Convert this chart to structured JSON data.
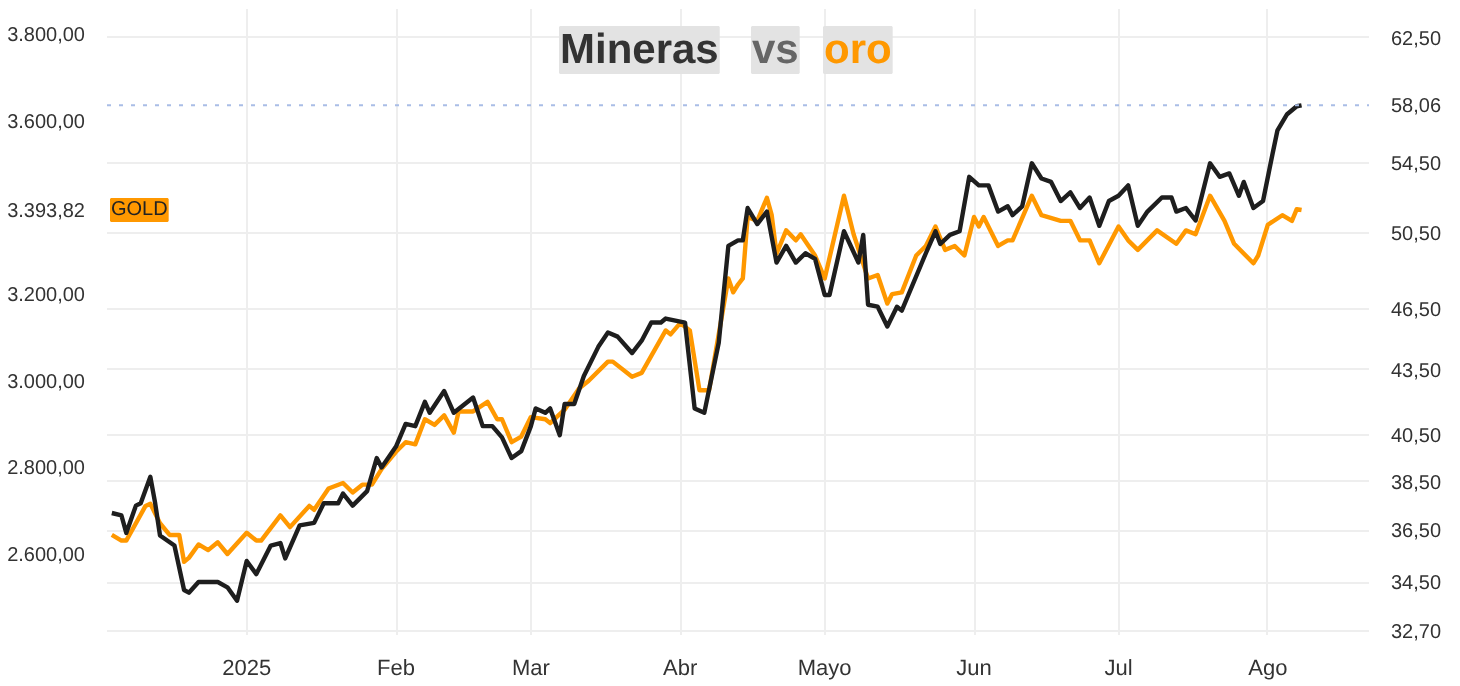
{
  "chart_data": {
    "type": "line",
    "title": "Mineras vs oro",
    "xlim": [
      "2024-12-03",
      "2025-08-22"
    ],
    "xticks": [
      {
        "value": "2025-01-01",
        "label": "2025"
      },
      {
        "value": "2025-02-01",
        "label": "Feb"
      },
      {
        "value": "2025-03-01",
        "label": "Mar"
      },
      {
        "value": "2025-04-01",
        "label": "Abr"
      },
      {
        "value": "2025-05-01",
        "label": "Mayo"
      },
      {
        "value": "2025-06-01",
        "label": "Jun"
      },
      {
        "value": "2025-07-01",
        "label": "Jul"
      },
      {
        "value": "2025-08-01",
        "label": "Ago"
      }
    ],
    "ylim": [
      2413,
      3858
    ],
    "yticks": [
      {
        "value": 2600,
        "label": "2.600,00"
      },
      {
        "value": 2800,
        "label": "2.800,00"
      },
      {
        "value": 3000,
        "label": "3.000,00"
      },
      {
        "value": 3200,
        "label": "3.200,00"
      },
      {
        "value": 3393.82,
        "label": "3.393,82"
      },
      {
        "value": 3600,
        "label": "3.600,00"
      },
      {
        "value": 3800,
        "label": "3.800,00"
      }
    ],
    "y2lim": [
      32.56,
      64.5
    ],
    "y2ticks": [
      {
        "value": 32.7,
        "label": "32,70"
      },
      {
        "value": 34.5,
        "label": "34,50"
      },
      {
        "value": 36.5,
        "label": "36,50"
      },
      {
        "value": 38.5,
        "label": "38,50"
      },
      {
        "value": 40.5,
        "label": "40,50"
      },
      {
        "value": 43.5,
        "label": "43,50"
      },
      {
        "value": 46.5,
        "label": "46,50"
      },
      {
        "value": 50.5,
        "label": "50,50"
      },
      {
        "value": 54.5,
        "label": "54,50"
      },
      {
        "value": 62.5,
        "label": "62,50"
      }
    ],
    "log": "y2",
    "grid": true,
    "ref_lines": [
      {
        "axis": "y2",
        "value": 58.06,
        "label": "58,06",
        "color": "#a9bde6",
        "line_style": "dotted"
      }
    ],
    "series": [
      {
        "name": "GOLD",
        "color": "#ff9800",
        "x": [
          "2024-12-04",
          "2024-12-06",
          "2024-12-07",
          "2024-12-11",
          "2024-12-12",
          "2024-12-14",
          "2024-12-16",
          "2024-12-18",
          "2024-12-19",
          "2024-12-20",
          "2024-12-22",
          "2024-12-24",
          "2024-12-26",
          "2024-12-28",
          "2025-01-01",
          "2025-01-03",
          "2025-01-04",
          "2025-01-08",
          "2025-01-10",
          "2025-01-14",
          "2025-01-15",
          "2025-01-18",
          "2025-01-21",
          "2025-01-23",
          "2025-01-25",
          "2025-01-27",
          "2025-01-29",
          "2025-02-01",
          "2025-02-03",
          "2025-02-05",
          "2025-02-07",
          "2025-02-09",
          "2025-02-11",
          "2025-02-13",
          "2025-02-14",
          "2025-02-17",
          "2025-02-20",
          "2025-02-22",
          "2025-02-23",
          "2025-02-25",
          "2025-02-27",
          "2025-03-01",
          "2025-03-04",
          "2025-03-05",
          "2025-03-08",
          "2025-03-11",
          "2025-03-13",
          "2025-03-17",
          "2025-03-18",
          "2025-03-22",
          "2025-03-24",
          "2025-03-29",
          "2025-03-30",
          "2025-04-01",
          "2025-04-03",
          "2025-04-05",
          "2025-04-07",
          "2025-04-11",
          "2025-04-12",
          "2025-04-13",
          "2025-04-14",
          "2025-04-15",
          "2025-04-17",
          "2025-04-19",
          "2025-04-20",
          "2025-04-21",
          "2025-04-23",
          "2025-04-25",
          "2025-04-26",
          "2025-04-29",
          "2025-05-01",
          "2025-05-05",
          "2025-05-07",
          "2025-05-10",
          "2025-05-12",
          "2025-05-14",
          "2025-05-15",
          "2025-05-17",
          "2025-05-20",
          "2025-05-22",
          "2025-05-24",
          "2025-05-26",
          "2025-05-28",
          "2025-05-30",
          "2025-06-01",
          "2025-06-02",
          "2025-06-03",
          "2025-06-06",
          "2025-06-08",
          "2025-06-09",
          "2025-06-13",
          "2025-06-15",
          "2025-06-19",
          "2025-06-21",
          "2025-06-23",
          "2025-06-25",
          "2025-06-27",
          "2025-07-01",
          "2025-07-03",
          "2025-07-05",
          "2025-07-09",
          "2025-07-13",
          "2025-07-15",
          "2025-07-17",
          "2025-07-20",
          "2025-07-23",
          "2025-07-25",
          "2025-07-29",
          "2025-07-30",
          "2025-08-01",
          "2025-08-04",
          "2025-08-06",
          "2025-08-07",
          "2025-08-08"
        ],
        "values": [
          2644,
          2631,
          2631,
          2711,
          2716,
          2671,
          2644,
          2644,
          2582,
          2591,
          2622,
          2609,
          2627,
          2600,
          2649,
          2631,
          2631,
          2689,
          2662,
          2711,
          2702,
          2751,
          2764,
          2742,
          2760,
          2760,
          2796,
          2836,
          2858,
          2853,
          2911,
          2898,
          2920,
          2880,
          2929,
          2929,
          2951,
          2911,
          2911,
          2858,
          2871,
          2916,
          2911,
          2902,
          2933,
          2982,
          3000,
          3044,
          3044,
          3009,
          3018,
          3116,
          3107,
          3133,
          3116,
          2978,
          2978,
          3236,
          3204,
          3222,
          3236,
          3378,
          3369,
          3422,
          3382,
          3293,
          3347,
          3324,
          3338,
          3289,
          3236,
          3427,
          3338,
          3236,
          3244,
          3178,
          3200,
          3204,
          3289,
          3311,
          3356,
          3302,
          3311,
          3289,
          3378,
          3356,
          3378,
          3311,
          3324,
          3324,
          3427,
          3382,
          3369,
          3369,
          3324,
          3324,
          3271,
          3356,
          3324,
          3302,
          3347,
          3316,
          3347,
          3338,
          3427,
          3369,
          3316,
          3271,
          3289,
          3360,
          3382,
          3369,
          3396,
          3394
        ]
      },
      {
        "color": "#1e1e1e",
        "axis": "y2",
        "x": [
          "2024-12-04",
          "2024-12-06",
          "2024-12-07",
          "2024-12-09",
          "2024-12-10",
          "2024-12-12",
          "2024-12-13",
          "2024-12-14",
          "2024-12-17",
          "2024-12-19",
          "2024-12-20",
          "2024-12-22",
          "2024-12-26",
          "2024-12-28",
          "2024-12-30",
          "2025-01-01",
          "2025-01-03",
          "2025-01-06",
          "2025-01-08",
          "2025-01-09",
          "2025-01-12",
          "2025-01-15",
          "2025-01-17",
          "2025-01-20",
          "2025-01-21",
          "2025-01-23",
          "2025-01-26",
          "2025-01-28",
          "2025-01-29",
          "2025-02-01",
          "2025-02-03",
          "2025-02-05",
          "2025-02-07",
          "2025-02-08",
          "2025-02-11",
          "2025-02-13",
          "2025-02-17",
          "2025-02-19",
          "2025-02-21",
          "2025-02-23",
          "2025-02-25",
          "2025-02-27",
          "2025-03-01",
          "2025-03-02",
          "2025-03-04",
          "2025-03-05",
          "2025-03-07",
          "2025-03-08",
          "2025-03-10",
          "2025-03-12",
          "2025-03-15",
          "2025-03-17",
          "2025-03-19",
          "2025-03-22",
          "2025-03-24",
          "2025-03-26",
          "2025-03-28",
          "2025-03-29",
          "2025-04-02",
          "2025-04-04",
          "2025-04-06",
          "2025-04-09",
          "2025-04-11",
          "2025-04-13",
          "2025-04-14",
          "2025-04-15",
          "2025-04-17",
          "2025-04-19",
          "2025-04-21",
          "2025-04-23",
          "2025-04-25",
          "2025-04-27",
          "2025-04-29",
          "2025-05-01",
          "2025-05-02",
          "2025-05-05",
          "2025-05-08",
          "2025-05-09",
          "2025-05-10",
          "2025-05-12",
          "2025-05-14",
          "2025-05-16",
          "2025-05-17",
          "2025-05-22",
          "2025-05-24",
          "2025-05-25",
          "2025-05-27",
          "2025-05-29",
          "2025-05-31",
          "2025-06-02",
          "2025-06-04",
          "2025-06-06",
          "2025-06-08",
          "2025-06-09",
          "2025-06-11",
          "2025-06-13",
          "2025-06-15",
          "2025-06-17",
          "2025-06-19",
          "2025-06-21",
          "2025-06-23",
          "2025-06-25",
          "2025-06-27",
          "2025-06-29",
          "2025-07-01",
          "2025-07-03",
          "2025-07-05",
          "2025-07-07",
          "2025-07-10",
          "2025-07-12",
          "2025-07-13",
          "2025-07-15",
          "2025-07-17",
          "2025-07-20",
          "2025-07-22",
          "2025-07-24",
          "2025-07-26",
          "2025-07-27",
          "2025-07-29",
          "2025-07-31",
          "2025-08-02",
          "2025-08-03",
          "2025-08-05",
          "2025-08-07",
          "2025-08-08"
        ],
        "values": [
          37.2,
          37.1,
          36.4,
          37.5,
          37.6,
          38.7,
          37.6,
          36.3,
          35.9,
          34.2,
          34.1,
          34.5,
          34.5,
          34.3,
          33.8,
          35.3,
          34.8,
          35.9,
          36.0,
          35.4,
          36.7,
          36.8,
          37.6,
          37.6,
          38.0,
          37.5,
          38.1,
          39.5,
          39.1,
          40.0,
          41.0,
          40.9,
          42.0,
          41.5,
          42.5,
          41.5,
          42.2,
          40.9,
          40.9,
          40.4,
          39.5,
          39.8,
          40.9,
          41.7,
          41.5,
          41.7,
          40.5,
          41.9,
          41.9,
          43.2,
          44.6,
          45.3,
          45.1,
          44.3,
          44.9,
          45.8,
          45.8,
          46.0,
          45.8,
          41.7,
          41.5,
          44.8,
          49.8,
          50.1,
          50.1,
          51.9,
          51.0,
          51.7,
          48.9,
          49.8,
          48.9,
          49.4,
          49.1,
          47.2,
          47.2,
          50.6,
          48.9,
          50.4,
          46.7,
          46.6,
          45.6,
          46.6,
          46.4,
          49.4,
          50.6,
          49.9,
          50.4,
          50.6,
          53.7,
          53.2,
          53.2,
          51.7,
          52.0,
          51.5,
          52.0,
          54.5,
          53.6,
          53.4,
          52.3,
          52.8,
          51.9,
          52.5,
          50.9,
          52.3,
          52.6,
          53.2,
          50.9,
          51.7,
          52.5,
          52.5,
          51.7,
          51.9,
          51.2,
          54.5,
          53.7,
          53.9,
          52.6,
          53.4,
          51.9,
          52.3,
          55.1,
          56.5,
          57.5,
          58.0,
          58.06
        ]
      }
    ]
  }
}
